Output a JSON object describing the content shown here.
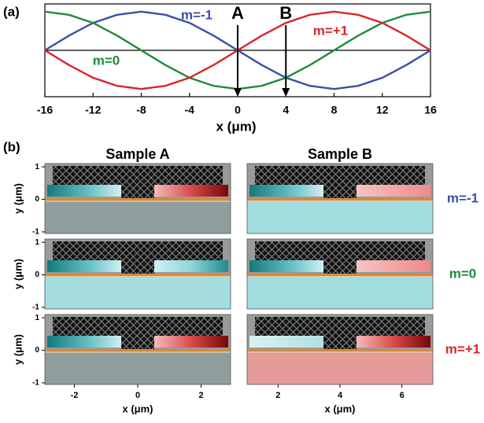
{
  "chart_data": [
    {
      "type": "line",
      "panel_label": "(a)",
      "xlabel": "x (μm)",
      "x": [
        -16,
        -14,
        -12,
        -10,
        -8,
        -6,
        -4,
        -2,
        0,
        2,
        4,
        6,
        8,
        10,
        12,
        14,
        16
      ],
      "xlim": [
        -16,
        16
      ],
      "xticks": [
        -16,
        -12,
        -8,
        -4,
        0,
        4,
        8,
        12,
        16
      ],
      "ylim": [
        -1.2,
        1.2
      ],
      "series": [
        {
          "name": "m=-1",
          "color": "#3a4fa8",
          "values": [
            0,
            0.38,
            0.71,
            0.92,
            1,
            0.92,
            0.71,
            0.38,
            0,
            -0.38,
            -0.71,
            -0.92,
            -1,
            -0.92,
            -0.71,
            -0.38,
            0
          ]
        },
        {
          "name": "m=0",
          "color": "#1f8a3c",
          "values": [
            1,
            0.92,
            0.71,
            0.38,
            0,
            -0.38,
            -0.71,
            -0.92,
            -1,
            -0.92,
            -0.71,
            -0.38,
            0,
            0.38,
            0.71,
            0.92,
            1
          ]
        },
        {
          "name": "m=+1",
          "color": "#d9262b",
          "values": [
            0,
            -0.38,
            -0.71,
            -0.92,
            -1,
            -0.92,
            -0.71,
            -0.38,
            0,
            0.38,
            0.71,
            0.92,
            1,
            0.92,
            0.71,
            0.38,
            0
          ]
        }
      ],
      "annotations": [
        {
          "text": "A",
          "x": 0
        },
        {
          "text": "B",
          "x": 4
        }
      ]
    },
    {
      "type": "field-map",
      "panel_label": "(b)",
      "xlabel": "x (μm)",
      "ylabel": "y (μm)",
      "ylim": [
        -1.05,
        1.1
      ],
      "yticks": [
        1,
        0,
        -1
      ],
      "panels": [
        {
          "title": "Sample A",
          "xlim": [
            -2.93,
            2.93
          ],
          "xticks": [
            -2,
            0,
            2
          ]
        },
        {
          "title": "Sample B",
          "xlim": [
            1,
            7
          ],
          "xticks": [
            2,
            4,
            6
          ]
        }
      ],
      "rows": [
        {
          "label": "m=-1",
          "color": "#3a4fa8"
        },
        {
          "label": "m=0",
          "color": "#1f8a3c"
        },
        {
          "label": "m=+1",
          "color": "#d9262b"
        }
      ]
    }
  ]
}
